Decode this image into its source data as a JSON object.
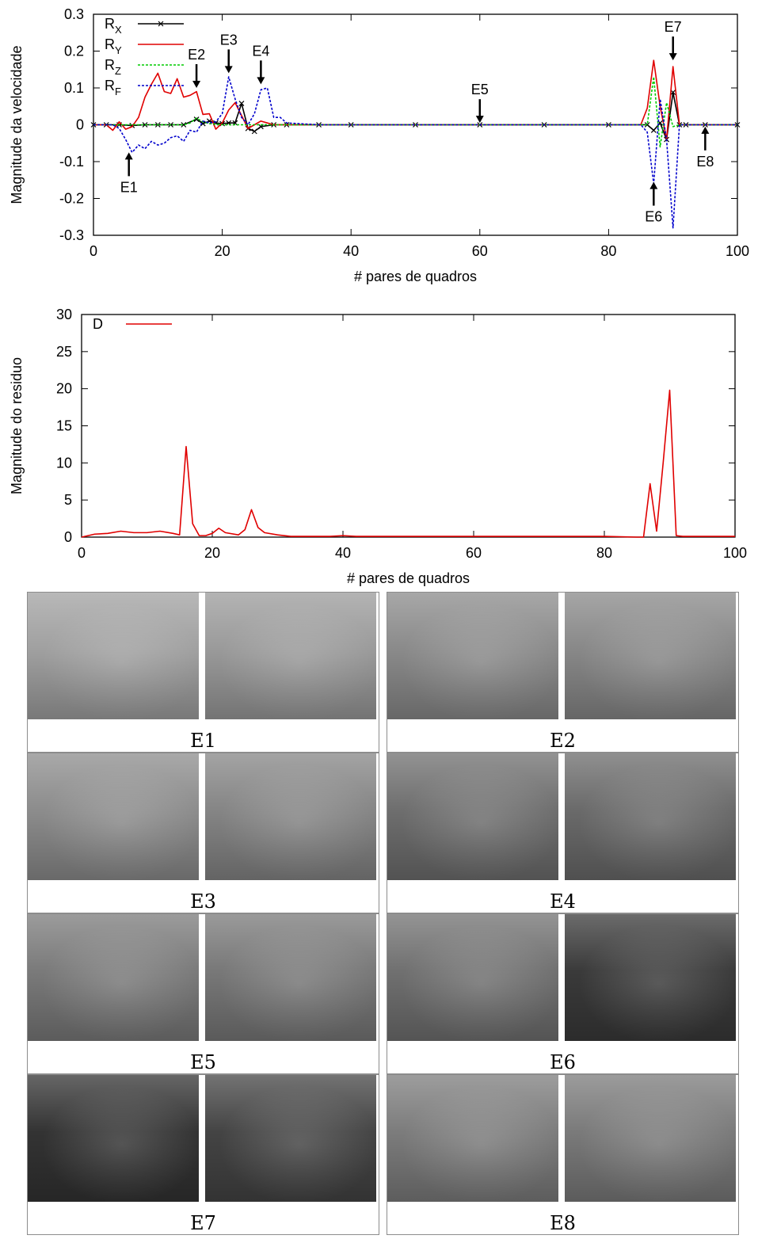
{
  "chart_data": [
    {
      "type": "line",
      "title": "",
      "xlabel": "# pares de quadros",
      "ylabel": "Magnitude da velocidade",
      "xlim": [
        0,
        100
      ],
      "ylim": [
        -0.3,
        0.3
      ],
      "xticks": [
        "0",
        "20",
        "40",
        "60",
        "80",
        "100"
      ],
      "yticks": [
        "-0.3",
        "-0.2",
        "-0.1",
        "0",
        "0.1",
        "0.2",
        "0.3"
      ],
      "grid": false,
      "legend_position": "top-left",
      "series": [
        {
          "name": "R",
          "sub": "X",
          "color": "#000000",
          "style": "solid",
          "marker": "x",
          "x": [
            0,
            2,
            4,
            6,
            8,
            10,
            12,
            14,
            16,
            17,
            18,
            19,
            20,
            21,
            22,
            23,
            24,
            25,
            26,
            28,
            30,
            35,
            40,
            50,
            60,
            70,
            80,
            86,
            87,
            88,
            89,
            90,
            91,
            92,
            95,
            100
          ],
          "y": [
            0,
            0,
            0,
            -0.002,
            0,
            0,
            0,
            0,
            0.015,
            0.003,
            0.01,
            0.005,
            0.003,
            0.005,
            0.005,
            0.058,
            -0.01,
            -0.018,
            -0.005,
            0,
            0,
            0,
            0,
            0,
            0,
            0,
            0,
            0,
            -0.015,
            0.005,
            -0.04,
            0.088,
            0,
            0,
            0,
            0
          ]
        },
        {
          "name": "R",
          "sub": "Y",
          "color": "#e00000",
          "style": "solid",
          "marker": "none",
          "x": [
            0,
            2,
            3,
            4,
            5,
            6,
            7,
            8,
            9,
            10,
            11,
            12,
            13,
            14,
            15,
            16,
            17,
            18,
            19,
            20,
            21,
            22,
            23,
            24,
            25,
            26,
            27,
            28,
            30,
            35,
            40,
            50,
            60,
            70,
            80,
            85,
            86,
            87,
            88,
            89,
            90,
            91,
            92,
            95,
            100
          ],
          "y": [
            0,
            0,
            -0.015,
            0.008,
            -0.012,
            -0.005,
            0.02,
            0.075,
            0.11,
            0.14,
            0.09,
            0.085,
            0.125,
            0.075,
            0.08,
            0.09,
            0.028,
            0.03,
            -0.012,
            0.005,
            0.04,
            0.06,
            0.025,
            -0.01,
            0,
            0.01,
            0.005,
            0,
            0,
            0,
            0,
            0,
            0,
            0,
            0,
            0,
            0.045,
            0.175,
            0.05,
            -0.04,
            0.158,
            0,
            0,
            0,
            0
          ]
        },
        {
          "name": "R",
          "sub": "Z",
          "color": "#00cc00",
          "style": "dotted",
          "marker": "none",
          "x": [
            0,
            10,
            14,
            15,
            16,
            17,
            18,
            20,
            22,
            24,
            26,
            30,
            40,
            60,
            80,
            86,
            87,
            88,
            89,
            90,
            91,
            92,
            100
          ],
          "y": [
            0,
            0,
            0,
            0.005,
            0.018,
            0.008,
            0.003,
            0,
            0,
            0,
            0,
            0,
            0,
            0,
            0,
            0,
            0.13,
            -0.06,
            0.06,
            -0.005,
            0,
            0,
            0
          ]
        },
        {
          "name": "R",
          "sub": "F",
          "color": "#0000cc",
          "style": "dotted",
          "marker": "none",
          "x": [
            0,
            3,
            4,
            5,
            6,
            7,
            8,
            9,
            10,
            11,
            12,
            13,
            14,
            15,
            16,
            17,
            18,
            19,
            20,
            21,
            22,
            23,
            24,
            25,
            26,
            27,
            28,
            29,
            30,
            35,
            40,
            60,
            80,
            85,
            86,
            87,
            88,
            89,
            90,
            91,
            92,
            100
          ],
          "y": [
            0,
            0,
            -0.01,
            -0.04,
            -0.075,
            -0.055,
            -0.065,
            -0.045,
            -0.055,
            -0.05,
            -0.035,
            -0.03,
            -0.045,
            -0.015,
            -0.02,
            0.01,
            0.005,
            0.008,
            0.03,
            0.13,
            0.07,
            0.02,
            0,
            0.03,
            0.095,
            0.1,
            0.02,
            0.02,
            0.005,
            0,
            0,
            0,
            0,
            0,
            -0.02,
            -0.16,
            0.07,
            -0.04,
            -0.28,
            0,
            0,
            0
          ]
        }
      ],
      "annotations": [
        {
          "label": "E1",
          "x": 5.5,
          "y": -0.075,
          "dir": "up"
        },
        {
          "label": "E2",
          "x": 16,
          "y": 0.1,
          "dir": "down"
        },
        {
          "label": "E3",
          "x": 21,
          "y": 0.14,
          "dir": "down"
        },
        {
          "label": "E4",
          "x": 26,
          "y": 0.11,
          "dir": "down"
        },
        {
          "label": "E5",
          "x": 60,
          "y": 0.005,
          "dir": "down"
        },
        {
          "label": "E6",
          "x": 87,
          "y": -0.155,
          "dir": "up"
        },
        {
          "label": "E7",
          "x": 90,
          "y": 0.175,
          "dir": "down"
        },
        {
          "label": "E8",
          "x": 95,
          "y": -0.005,
          "dir": "up"
        }
      ]
    },
    {
      "type": "line",
      "title": "",
      "xlabel": "# pares de quadros",
      "ylabel": "Magnitude do residuo",
      "xlim": [
        0,
        100
      ],
      "ylim": [
        0,
        30
      ],
      "xticks": [
        "0",
        "20",
        "40",
        "60",
        "80",
        "100"
      ],
      "yticks": [
        "0",
        "5",
        "10",
        "15",
        "20",
        "25",
        "30"
      ],
      "grid": false,
      "legend_position": "top-left",
      "series": [
        {
          "name": "D",
          "color": "#e00000",
          "style": "solid",
          "x": [
            0,
            2,
            4,
            6,
            8,
            10,
            12,
            14,
            15,
            16,
            17,
            18,
            19,
            20,
            21,
            22,
            24,
            25,
            26,
            27,
            28,
            30,
            32,
            34,
            36,
            38,
            40,
            42,
            44,
            46,
            48,
            50,
            55,
            60,
            65,
            70,
            75,
            80,
            85,
            86,
            87,
            88,
            89,
            90,
            91,
            92,
            95,
            100
          ],
          "y": [
            0,
            0.4,
            0.5,
            0.8,
            0.6,
            0.6,
            0.8,
            0.5,
            0.3,
            12.2,
            1.8,
            0.2,
            0.2,
            0.5,
            1.2,
            0.6,
            0.3,
            1.0,
            3.7,
            1.3,
            0.6,
            0.3,
            0.1,
            0.1,
            0.1,
            0.1,
            0.2,
            0.1,
            0.1,
            0.1,
            0.1,
            0.1,
            0.1,
            0.1,
            0.1,
            0.1,
            0.1,
            0.1,
            0,
            0,
            7.2,
            0.8,
            10.0,
            19.8,
            0.2,
            0.1,
            0.1,
            0.1
          ]
        }
      ]
    }
  ],
  "frame_panels": [
    {
      "label": "E1",
      "left_tone": "#a0a0a0",
      "right_tone": "#9a9a9a"
    },
    {
      "label": "E2",
      "left_tone": "#8a8a8a",
      "right_tone": "#888888"
    },
    {
      "label": "E3",
      "left_tone": "#8c8c8c",
      "right_tone": "#858585"
    },
    {
      "label": "E4",
      "left_tone": "#6e6e6e",
      "right_tone": "#6a6a6a"
    },
    {
      "label": "E5",
      "left_tone": "#7a7a7a",
      "right_tone": "#787878"
    },
    {
      "label": "E6",
      "left_tone": "#707070",
      "right_tone": "#3a3a3a"
    },
    {
      "label": "E7",
      "left_tone": "#333333",
      "right_tone": "#444444"
    },
    {
      "label": "E8",
      "left_tone": "#7c7c7c",
      "right_tone": "#7a7a7a"
    }
  ]
}
